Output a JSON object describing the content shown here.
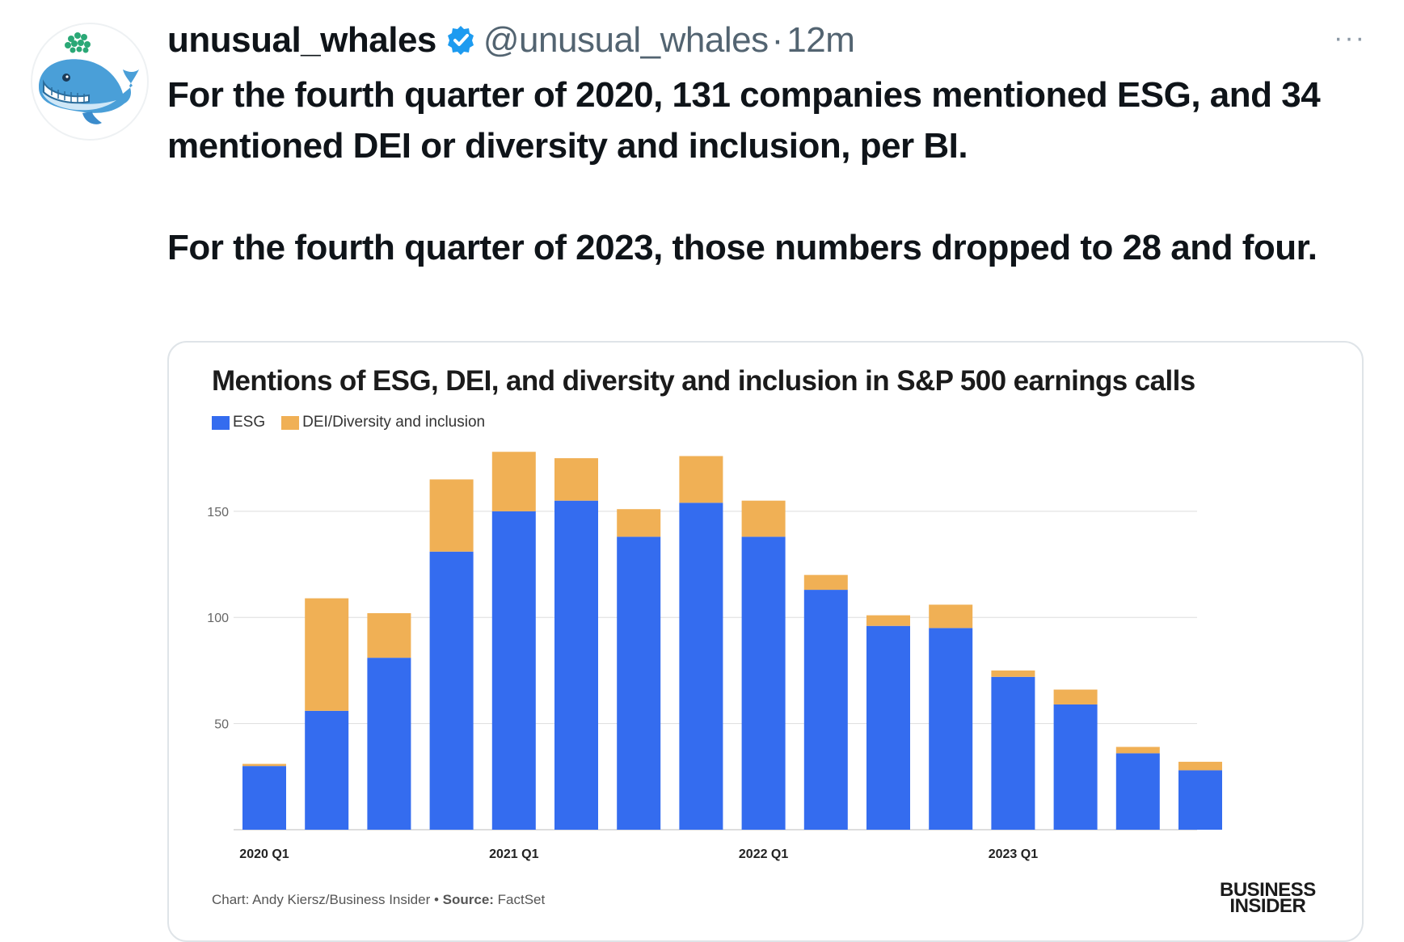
{
  "tweet": {
    "display_name": "unusual_whales",
    "handle": "@unusual_whales",
    "separator": "·",
    "time": "12m",
    "more": "···",
    "verified_icon": "verified-badge-icon",
    "paragraph1": "For the fourth quarter of 2020, 131 companies mentioned ESG, and 34 mentioned DEI or diversity and inclusion, per BI.",
    "paragraph2": "For the fourth quarter of 2023, those numbers dropped to 28 and four."
  },
  "colors": {
    "esg": "#346cef",
    "dei": "#f0b055",
    "verified": "#1d9bf0",
    "grid": "#dddddd"
  },
  "card": {
    "source_prefix": "Chart: Andy Kiersz/Business Insider • ",
    "source_label": "Source:",
    "source_value": " FactSet",
    "logo_line1": "BUSINESS",
    "logo_line2": "INSIDER"
  },
  "chart_data": {
    "type": "bar",
    "stacked": true,
    "title": "Mentions of ESG, DEI, and diversity and inclusion in S&P 500 earnings calls",
    "legend_position": "top-left",
    "grid": true,
    "categories": [
      "2020 Q1",
      "2020 Q2",
      "2020 Q3",
      "2020 Q4",
      "2021 Q1",
      "2021 Q2",
      "2021 Q3",
      "2021 Q4",
      "2022 Q1",
      "2022 Q2",
      "2022 Q3",
      "2022 Q4",
      "2023 Q1",
      "2023 Q2",
      "2023 Q3",
      "2023 Q4"
    ],
    "tick_labels": [
      "2020 Q1",
      "",
      "",
      "",
      "2021 Q1",
      "",
      "",
      "",
      "2022 Q1",
      "",
      "",
      "",
      "2023 Q1",
      "",
      "",
      ""
    ],
    "yticks": [
      50,
      100,
      150
    ],
    "ylim": [
      0,
      180
    ],
    "series": [
      {
        "name": "ESG",
        "values": [
          30,
          56,
          81,
          131,
          150,
          155,
          138,
          154,
          138,
          113,
          96,
          95,
          72,
          59,
          36,
          28
        ]
      },
      {
        "name": "DEI/Diversity and inclusion",
        "values": [
          1,
          53,
          21,
          34,
          28,
          20,
          13,
          22,
          17,
          7,
          5,
          11,
          3,
          7,
          3,
          4
        ]
      }
    ]
  }
}
